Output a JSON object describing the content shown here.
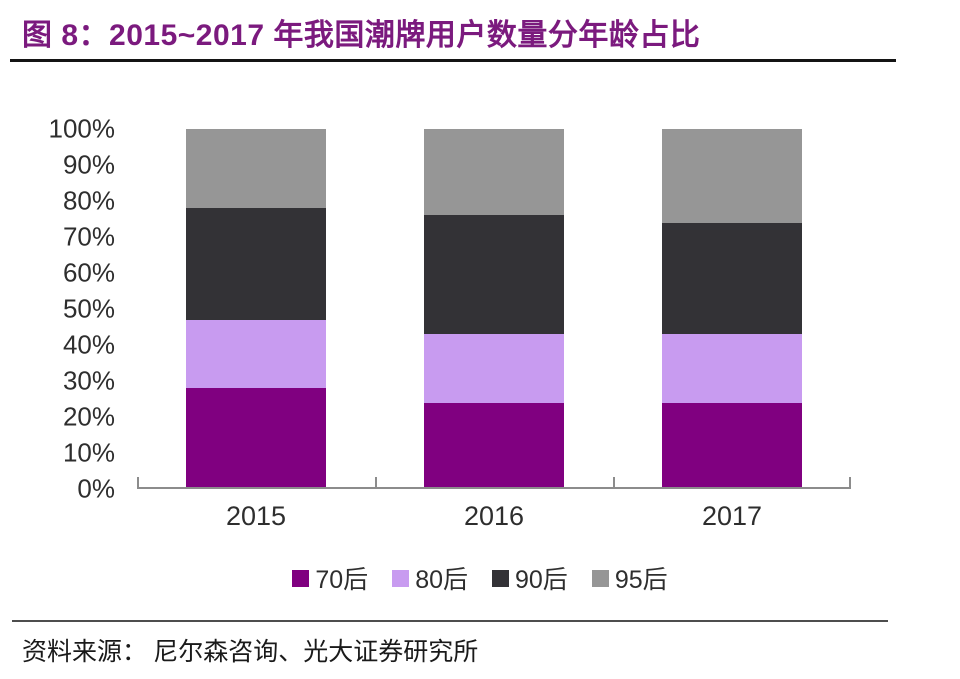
{
  "figure": {
    "title": "图 8：2015~2017 年我国潮牌用户数量分年龄占比",
    "title_color": "#7B1A7E",
    "source_prefix": "资料来源：",
    "source_body": "尼尔森咨询、光大证券研究所"
  },
  "chart_data": {
    "type": "bar",
    "stacked": true,
    "title": "2015~2017 年我国潮牌用户数量分年龄占比",
    "categories": [
      "2015",
      "2016",
      "2017"
    ],
    "series": [
      {
        "name": "70后",
        "color": "#800080",
        "values": [
          28,
          24,
          24
        ]
      },
      {
        "name": "80后",
        "color": "#C89BF0",
        "values": [
          19,
          19,
          19
        ]
      },
      {
        "name": "90后",
        "color": "#333236",
        "values": [
          31,
          33,
          31
        ]
      },
      {
        "name": "95后",
        "color": "#969696",
        "values": [
          22,
          24,
          26
        ]
      }
    ],
    "unit": "%",
    "ylim": [
      0,
      100
    ],
    "y_ticks": [
      "0%",
      "10%",
      "20%",
      "30%",
      "40%",
      "50%",
      "60%",
      "70%",
      "80%",
      "90%",
      "100%"
    ],
    "grid": false,
    "legend_position": "bottom",
    "axis_color": "#8C8C8C",
    "label_color": "#2e2e2e"
  }
}
